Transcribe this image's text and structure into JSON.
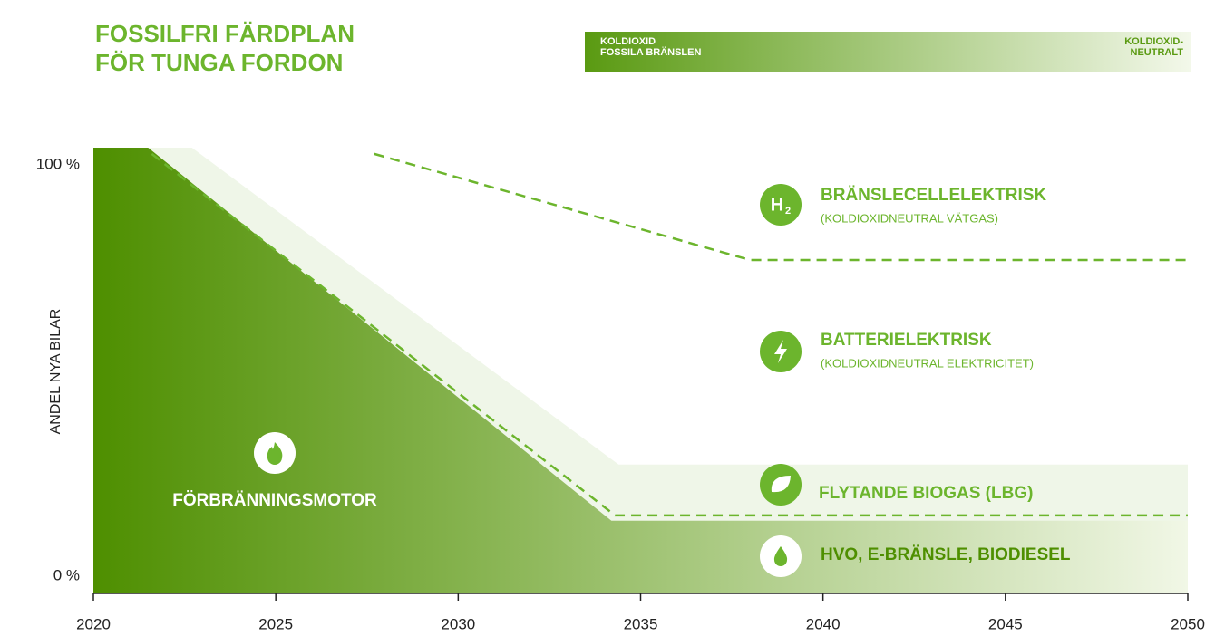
{
  "header": {
    "title": [
      "FOSSILFRI FÄRDPLAN",
      "FÖR TUNGA FORDON"
    ],
    "scale_left": [
      "KOLDIOXID",
      "FOSSILA BRÄNSLEN"
    ],
    "scale_right": [
      "KOLDIOXID-",
      "NEUTRALT"
    ]
  },
  "chart_data": {
    "type": "area",
    "ylabel": "ANDEL NYA BILAR",
    "xlim": [
      2020,
      2050
    ],
    "xticks": [
      2020,
      2025,
      2030,
      2035,
      2040,
      2045,
      2050
    ],
    "ylim": [
      0,
      100
    ],
    "yticks": [
      {
        "value": 0,
        "label": "0 %"
      },
      {
        "value": 100,
        "label": "100 %"
      }
    ],
    "series": [
      {
        "color": "#eff6e8",
        "style": "area",
        "x": [
          2020,
          2022.7,
          2034.4,
          2050
        ],
        "values": [
          100,
          100,
          28.9,
          28.9
        ]
      },
      {
        "color": "#4e8f00",
        "color_end": "#f1f7e6",
        "style": "area",
        "x": [
          2020,
          2021.5,
          2034.2,
          2050
        ],
        "values": [
          100,
          100,
          16.3,
          16.3
        ]
      },
      {
        "color": "#6cb52d",
        "style": "dashed",
        "x": [
          2021.6,
          2034.3,
          2050
        ],
        "values": [
          98.6,
          17.5,
          17.5
        ]
      },
      {
        "color": "#6cb52d",
        "style": "dashed",
        "x": [
          2027.7,
          2038,
          2050
        ],
        "values": [
          98.6,
          74.8,
          74.8
        ]
      }
    ],
    "annotations": [
      {
        "text": "BRÄNSLECELLELEKTRISK",
        "sub": "(KOLDIOXIDNEUTRAL VÄTGAS)",
        "icon": [
          "H",
          "2"
        ]
      },
      {
        "text": "BATTERIELEKTRISK",
        "sub": "(KOLDIOXIDNEUTRAL ELEKTRICITET)"
      },
      {
        "text": "FLYTANDE BIOGAS (LBG)"
      },
      {
        "text": "HVO, E-BRÄNSLE, BIODIESEL"
      },
      {
        "text": "FÖRBRÄNNINGSMOTOR"
      }
    ]
  }
}
